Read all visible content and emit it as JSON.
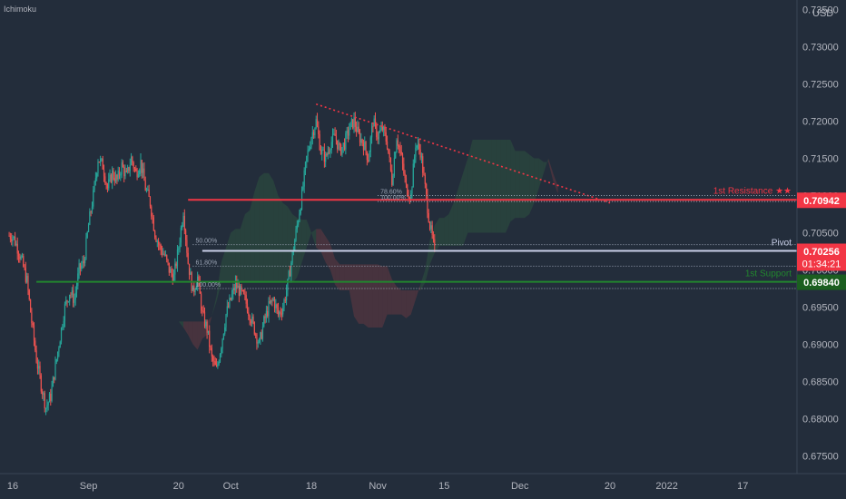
{
  "indicator": "Ichimoku",
  "currency": "USD",
  "chart_data": {
    "type": "candlestick",
    "y_ticks": [
      "0.73500",
      "0.73000",
      "0.72500",
      "0.72000",
      "0.71500",
      "0.71000",
      "0.70500",
      "0.70000",
      "0.69500",
      "0.69000",
      "0.68500",
      "0.68000",
      "0.67500"
    ],
    "y_tick_values": [
      0.735,
      0.73,
      0.725,
      0.72,
      0.715,
      0.71,
      0.705,
      0.7,
      0.695,
      0.69,
      0.685,
      0.68,
      0.675
    ],
    "ylim": [
      0.6726,
      0.7363
    ],
    "x_ticks": [
      {
        "label": "16",
        "day": 0
      },
      {
        "label": "Sep",
        "day": 16
      },
      {
        "label": "20",
        "day": 35
      },
      {
        "label": "Oct",
        "day": 46
      },
      {
        "label": "18",
        "day": 63
      },
      {
        "label": "Nov",
        "day": 77
      },
      {
        "label": "15",
        "day": 91
      },
      {
        "label": "Dec",
        "day": 107
      },
      {
        "label": "20",
        "day": 126
      },
      {
        "label": "2022",
        "day": 138
      },
      {
        "label": "17",
        "day": 154
      }
    ],
    "xlim_days": [
      0,
      162
    ],
    "candles_daily_close": [
      [
        0,
        0.7046
      ],
      [
        1,
        0.703
      ],
      [
        2,
        0.701
      ],
      [
        3,
        0.6985
      ],
      [
        4,
        0.693
      ],
      [
        5,
        0.688
      ],
      [
        6,
        0.6845
      ],
      [
        7,
        0.6815
      ],
      [
        8,
        0.683
      ],
      [
        9,
        0.687
      ],
      [
        10,
        0.691
      ],
      [
        11,
        0.695
      ],
      [
        12,
        0.697
      ],
      [
        13,
        0.696
      ],
      [
        14,
        0.7
      ],
      [
        15,
        0.701
      ],
      [
        16,
        0.706
      ],
      [
        17,
        0.71
      ],
      [
        18,
        0.715
      ],
      [
        19,
        0.714
      ],
      [
        20,
        0.711
      ],
      [
        21,
        0.713
      ],
      [
        22,
        0.712
      ],
      [
        23,
        0.714
      ],
      [
        24,
        0.7125
      ],
      [
        25,
        0.715
      ],
      [
        26,
        0.713
      ],
      [
        27,
        0.7145
      ],
      [
        28,
        0.711
      ],
      [
        29,
        0.709
      ],
      [
        30,
        0.705
      ],
      [
        31,
        0.703
      ],
      [
        32,
        0.702
      ],
      [
        33,
        0.7
      ],
      [
        34,
        0.699
      ],
      [
        35,
        0.703
      ],
      [
        36,
        0.708
      ],
      [
        37,
        0.701
      ],
      [
        38,
        0.697
      ],
      [
        39,
        0.699
      ],
      [
        40,
        0.694
      ],
      [
        41,
        0.692
      ],
      [
        42,
        0.688
      ],
      [
        43,
        0.6865
      ],
      [
        44,
        0.69
      ],
      [
        45,
        0.694
      ],
      [
        46,
        0.696
      ],
      [
        47,
        0.698
      ],
      [
        48,
        0.697
      ],
      [
        49,
        0.696
      ],
      [
        50,
        0.694
      ],
      [
        51,
        0.692
      ],
      [
        52,
        0.69
      ],
      [
        53,
        0.693
      ],
      [
        54,
        0.695
      ],
      [
        55,
        0.696
      ],
      [
        56,
        0.694
      ],
      [
        57,
        0.695
      ],
      [
        58,
        0.698
      ],
      [
        59,
        0.702
      ],
      [
        60,
        0.706
      ],
      [
        61,
        0.71
      ],
      [
        62,
        0.715
      ],
      [
        63,
        0.718
      ],
      [
        64,
        0.72
      ],
      [
        65,
        0.716
      ],
      [
        66,
        0.715
      ],
      [
        67,
        0.717
      ],
      [
        68,
        0.718
      ],
      [
        69,
        0.716
      ],
      [
        70,
        0.717
      ],
      [
        71,
        0.719
      ],
      [
        72,
        0.72
      ],
      [
        73,
        0.718
      ],
      [
        74,
        0.717
      ],
      [
        75,
        0.715
      ],
      [
        76,
        0.72
      ],
      [
        77,
        0.718
      ],
      [
        78,
        0.719
      ],
      [
        79,
        0.717
      ],
      [
        80,
        0.712
      ],
      [
        81,
        0.718
      ],
      [
        82,
        0.715
      ],
      [
        83,
        0.711
      ],
      [
        84,
        0.71
      ],
      [
        85,
        0.717
      ],
      [
        86,
        0.716
      ],
      [
        87,
        0.711
      ],
      [
        88,
        0.706
      ],
      [
        89,
        0.7025
      ]
    ],
    "annotations": [
      {
        "name": "1st Resistance",
        "label": "1st Resistance ★★",
        "value": 0.70942,
        "color": "#f23645"
      },
      {
        "name": "Pivot",
        "label": "Pivot",
        "value": 0.70256,
        "color": "#c9cfe8"
      },
      {
        "name": "1st Support",
        "label": "1st Support",
        "value": 0.6984,
        "color": "#22862e"
      },
      {
        "name": "Downtrend line",
        "from": [
          64,
          0.7223
        ],
        "to": [
          126,
          0.709
        ],
        "color": "#f23645",
        "style": "dotted"
      }
    ],
    "fib_levels": [
      {
        "label": "78.60%",
        "value": 0.71
      },
      {
        "label": "100.00%",
        "value": 0.7092
      },
      {
        "label": "50.00%",
        "value": 0.7034
      },
      {
        "label": "61.80%",
        "value": 0.7005
      },
      {
        "label": "100.00%",
        "value": 0.6975
      }
    ],
    "price_tags": [
      {
        "value": "0.70942",
        "color": "#f23645"
      },
      {
        "value": "0.70256",
        "countdown": "01:34:21",
        "color": "#f23645"
      },
      {
        "value": "0.69840",
        "color": "#1b5e20"
      }
    ]
  }
}
